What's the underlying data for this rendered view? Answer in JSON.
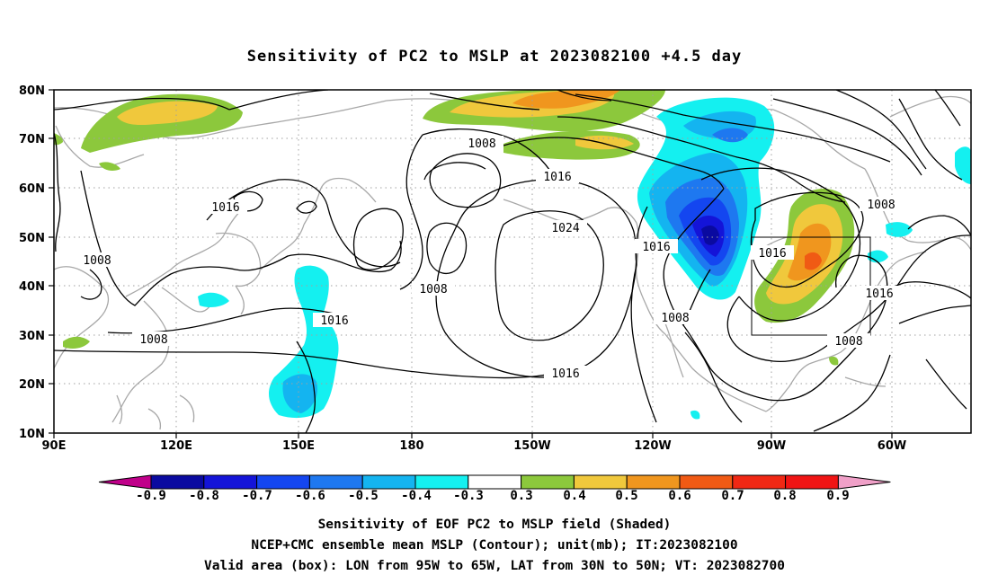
{
  "title": "Sensitivity of PC2 to MSLP at 2023082100 +4.5 day",
  "map": {
    "lon_labels": [
      "90E",
      "120E",
      "150E",
      "180",
      "150W",
      "120W",
      "90W",
      "60W"
    ],
    "lat_labels": [
      "80N",
      "70N",
      "60N",
      "50N",
      "40N",
      "30N",
      "20N",
      "10N"
    ],
    "contour_labels": [
      "1008",
      "1016",
      "1024",
      "1016",
      "1008",
      "1016",
      "1008",
      "1016",
      "1008",
      "1016",
      "1016",
      "1008",
      "1008"
    ],
    "valid_box": {
      "lon": [
        "95W",
        "65W"
      ],
      "lat": [
        "30N",
        "50N"
      ]
    }
  },
  "colorbar": {
    "labels": [
      "-0.9",
      "-0.8",
      "-0.7",
      "-0.6",
      "-0.5",
      "-0.4",
      "-0.3",
      "0.3",
      "0.4",
      "0.5",
      "0.6",
      "0.7",
      "0.8",
      "0.9"
    ],
    "colors": [
      "#c0008a",
      "#0a0aa0",
      "#1414d8",
      "#1446f0",
      "#1e78f0",
      "#14b4f0",
      "#14f0f0",
      "#ffffff",
      "#8cc83c",
      "#f0c83c",
      "#f0961e",
      "#f05a14",
      "#f02814",
      "#f01414",
      "#f0a0c8"
    ]
  },
  "captions": {
    "line1": "Sensitivity of EOF PC2 to MSLP field (Shaded)",
    "line2": "NCEP+CMC ensemble mean MSLP (Contour); unit(mb); IT:2023082100",
    "line3": "Valid area (box): LON from 95W to 65W, LAT from 30N to 50N; VT: 2023082700"
  }
}
